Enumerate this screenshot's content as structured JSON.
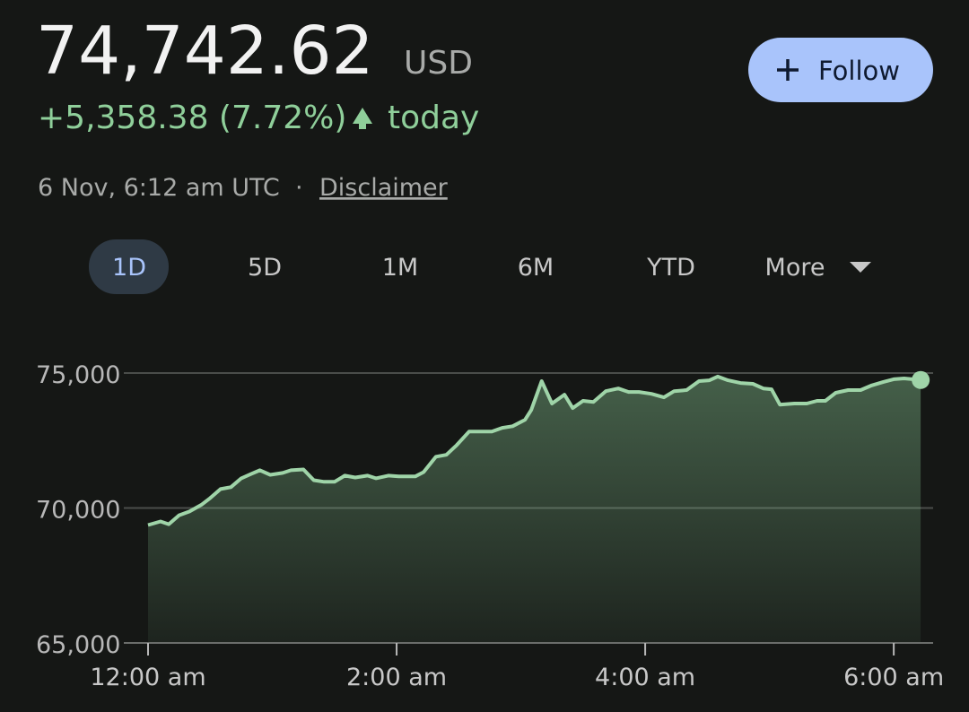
{
  "header": {
    "price": "74,742.62",
    "currency": "USD",
    "change": "+5,358.38 (7.72%)",
    "period": "today",
    "timestamp": "6 Nov, 6:12 am UTC",
    "disclaimer": "Disclaimer"
  },
  "follow_button": {
    "label": "Follow"
  },
  "tabs": [
    "1D",
    "5D",
    "1M",
    "6M",
    "YTD",
    "More"
  ],
  "chart_data": {
    "type": "line",
    "color": "#9fd4a8",
    "x": [
      0,
      6,
      10,
      15,
      20,
      26,
      30,
      35,
      40,
      45,
      50,
      54,
      59,
      65,
      69,
      75,
      80,
      85,
      90,
      95,
      100,
      106,
      110,
      116,
      121,
      129,
      133,
      139,
      144,
      149,
      155,
      160,
      166,
      171,
      176,
      182,
      185,
      190,
      195,
      201,
      205,
      210,
      215,
      221,
      227,
      232,
      237,
      243,
      249,
      254,
      260,
      266,
      271,
      275,
      280,
      286,
      292,
      297,
      301,
      305,
      312,
      318,
      323,
      327,
      332,
      338,
      344,
      349,
      355,
      360,
      365,
      373
    ],
    "values": [
      69370,
      69500,
      69400,
      69730,
      69870,
      70130,
      70370,
      70700,
      70770,
      71100,
      71270,
      71400,
      71230,
      71300,
      71400,
      71430,
      71030,
      70970,
      70970,
      71200,
      71130,
      71200,
      71100,
      71200,
      71170,
      71170,
      71330,
      71900,
      71970,
      72330,
      72830,
      72830,
      72830,
      72970,
      73030,
      73270,
      73630,
      74700,
      73870,
      74200,
      73700,
      73970,
      73930,
      74330,
      74430,
      74300,
      74300,
      74230,
      74100,
      74330,
      74370,
      74700,
      74730,
      74870,
      74730,
      74630,
      74600,
      74430,
      74400,
      73830,
      73870,
      73870,
      73970,
      73970,
      74270,
      74370,
      74370,
      74530,
      74670,
      74770,
      74800,
      74742.62
    ],
    "xlim": [
      0,
      379
    ],
    "ylim": [
      65000,
      75000
    ],
    "xticks": [
      {
        "value": 0,
        "label": "12:00 am"
      },
      {
        "value": 120,
        "label": "2:00 am"
      },
      {
        "value": 240,
        "label": "4:00 am"
      },
      {
        "value": 360,
        "label": "6:00 am"
      }
    ],
    "yticks": [
      {
        "value": 65000,
        "label": "65,000"
      },
      {
        "value": 70000,
        "label": "70,000"
      },
      {
        "value": 75000,
        "label": "75,000"
      }
    ],
    "grid": true
  }
}
